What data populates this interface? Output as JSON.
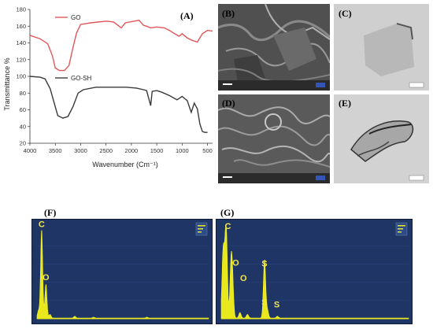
{
  "panel_labels": {
    "a": "(A)",
    "b": "(B)",
    "c": "(C)",
    "d": "(D)",
    "e": "(E)",
    "f": "(F)",
    "g": "(G)"
  },
  "chart_data": [
    {
      "type": "line",
      "panel": "(A)",
      "xlabel": "Wavenumber (Cm⁻¹)",
      "ylabel": "Transmittance %",
      "xlim": [
        4000,
        400
      ],
      "ylim": [
        20,
        180
      ],
      "x_reversed": true,
      "xticks": [
        4000,
        3500,
        3000,
        2500,
        2000,
        1500,
        1000,
        500
      ],
      "yticks": [
        20,
        40,
        60,
        80,
        100,
        120,
        140,
        160,
        180
      ],
      "legend_placement": "top-left",
      "series": [
        {
          "name": "GO",
          "color": "#e0575a",
          "points": [
            [
              4000,
              149
            ],
            [
              3800,
              145
            ],
            [
              3650,
              139
            ],
            [
              3560,
              125
            ],
            [
              3500,
              110
            ],
            [
              3420,
              107
            ],
            [
              3320,
              107
            ],
            [
              3230,
              113
            ],
            [
              3150,
              135
            ],
            [
              3080,
              152
            ],
            [
              3000,
              162
            ],
            [
              2800,
              164
            ],
            [
              2500,
              166
            ],
            [
              2350,
              165
            ],
            [
              2200,
              158
            ],
            [
              2120,
              164
            ],
            [
              1950,
              166
            ],
            [
              1850,
              167
            ],
            [
              1760,
              161
            ],
            [
              1700,
              160
            ],
            [
              1620,
              158
            ],
            [
              1500,
              159
            ],
            [
              1350,
              158
            ],
            [
              1250,
              155
            ],
            [
              1150,
              151
            ],
            [
              1060,
              148
            ],
            [
              1000,
              151
            ],
            [
              900,
              146
            ],
            [
              800,
              143
            ],
            [
              700,
              141
            ],
            [
              600,
              151
            ],
            [
              500,
              155
            ],
            [
              400,
              154
            ]
          ]
        },
        {
          "name": "GO-SH",
          "color": "#3a3a3a",
          "points": [
            [
              4000,
              100
            ],
            [
              3800,
              99
            ],
            [
              3700,
              97
            ],
            [
              3600,
              85
            ],
            [
              3520,
              68
            ],
            [
              3450,
              53
            ],
            [
              3350,
              50
            ],
            [
              3250,
              52
            ],
            [
              3150,
              64
            ],
            [
              3050,
              80
            ],
            [
              2950,
              84
            ],
            [
              2700,
              87
            ],
            [
              2400,
              87
            ],
            [
              2100,
              87
            ],
            [
              1900,
              86
            ],
            [
              1760,
              84
            ],
            [
              1700,
              83
            ],
            [
              1620,
              65
            ],
            [
              1590,
              82
            ],
            [
              1500,
              83
            ],
            [
              1400,
              81
            ],
            [
              1250,
              77
            ],
            [
              1100,
              72
            ],
            [
              1000,
              76
            ],
            [
              900,
              71
            ],
            [
              820,
              57
            ],
            [
              760,
              68
            ],
            [
              700,
              61
            ],
            [
              650,
              43
            ],
            [
              600,
              34
            ],
            [
              550,
              33
            ],
            [
              500,
              33
            ]
          ]
        }
      ]
    },
    {
      "type": "bar",
      "panel": "(F)",
      "peak_labels": [
        "C",
        "O"
      ],
      "ylim": [
        0,
        100
      ],
      "peaks": [
        {
          "label": "C",
          "x": 0.27,
          "y": 97
        },
        {
          "label": "O",
          "x": 0.52,
          "y": 37
        },
        {
          "label": "",
          "x": 0.09,
          "y": 8
        },
        {
          "label": "",
          "x": 0.76,
          "y": 4
        },
        {
          "label": "",
          "x": 2.2,
          "y": 2
        },
        {
          "label": "",
          "x": 3.3,
          "y": 1
        },
        {
          "label": "",
          "x": 6.4,
          "y": 1
        }
      ],
      "xlim": [
        0,
        10
      ]
    },
    {
      "type": "bar",
      "panel": "(G)",
      "peak_labels": [
        "C",
        "O",
        "O",
        "S",
        "S",
        "S"
      ],
      "ylim": [
        0,
        100
      ],
      "peaks": [
        {
          "label": "C",
          "x": 0.27,
          "y": 95
        },
        {
          "label": "O",
          "x": 0.52,
          "y": 53
        },
        {
          "label": "O",
          "x": 0.6,
          "y": 38
        },
        {
          "label": "S",
          "x": 2.31,
          "y": 10
        },
        {
          "label": "S",
          "x": 2.31,
          "y": 54
        },
        {
          "label": "S",
          "x": 2.46,
          "y": 9
        },
        {
          "label": "",
          "x": 0.09,
          "y": 60
        },
        {
          "label": "",
          "x": 0.17,
          "y": 35
        },
        {
          "label": "",
          "x": 1.0,
          "y": 6
        },
        {
          "label": "",
          "x": 1.4,
          "y": 4
        },
        {
          "label": "",
          "x": 3.0,
          "y": 2
        }
      ],
      "xlim": [
        0,
        10
      ]
    }
  ]
}
